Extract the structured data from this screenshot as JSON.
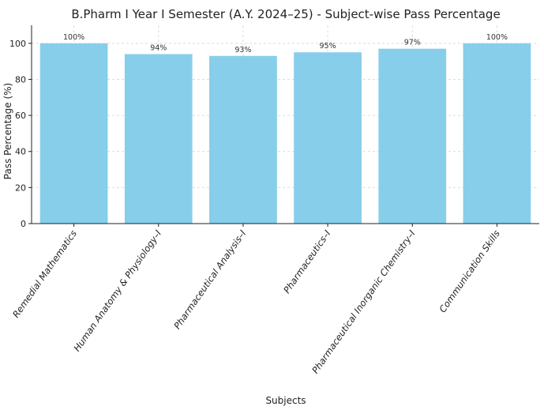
{
  "chart_data": {
    "type": "bar",
    "title": "B.Pharm I Year I Semester (A.Y. 2024–25) - Subject-wise Pass Percentage",
    "xlabel": "Subjects",
    "ylabel": "Pass Percentage (%)",
    "categories": [
      "Remedial Mathematics",
      "Human Anatomy & Physiology–I",
      "Pharmaceutical Analysis–I",
      "Pharmaceutics–I",
      "Pharmaceutical Inorganic Chemistry–I",
      "Communication Skills"
    ],
    "values": [
      100,
      94,
      93,
      95,
      97,
      100
    ],
    "data_labels": [
      "100%",
      "94%",
      "93%",
      "95%",
      "97%",
      "100%"
    ],
    "ylim": [
      0,
      110
    ],
    "yticks": [
      0,
      20,
      40,
      60,
      80,
      100
    ],
    "grid": true,
    "bar_color": "#87CEEB"
  }
}
